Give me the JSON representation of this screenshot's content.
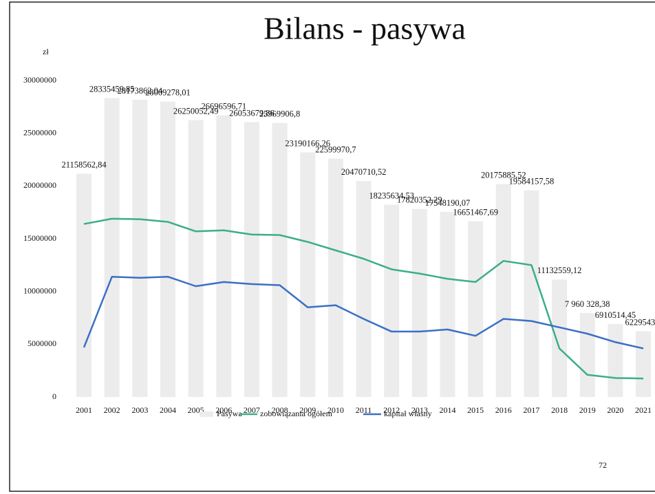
{
  "chart_data": {
    "type": "bar_line",
    "title": "Bilans - pasywa",
    "y_unit": "zł",
    "page_number": "72",
    "categories": [
      "2001",
      "2002",
      "2003",
      "2004",
      "2005",
      "2006",
      "2007",
      "2008",
      "2009",
      "2010",
      "2011",
      "2012",
      "2013",
      "2014",
      "2015",
      "2016",
      "2017",
      "2018",
      "2019",
      "2020",
      "2021"
    ],
    "series": [
      {
        "name": "Pasywa",
        "kind": "bar",
        "color": "#ececec",
        "values": [
          21158562.84,
          28335459.85,
          28173862.04,
          28009278.01,
          26250052.49,
          26696596.71,
          26053679.86,
          25969906.8,
          23190166.26,
          22599970.7,
          20470710.52,
          18235634.53,
          17820352.29,
          17548190.07,
          16651467.69,
          20175885.52,
          19584157.58,
          11132559.12,
          7960328.38,
          6910514.45,
          6229543.6
        ],
        "value_labels": [
          "21158562,84",
          "28335459,85",
          "28173862,04",
          "28009278,01",
          "26250052,49",
          "26696596,71",
          "26053679,86",
          "25969906,8",
          "23190166,26",
          "22599970,7",
          "20470710,52",
          "18235634,53",
          "17820352,29",
          "17548190,07",
          "16651467,69",
          "20175885,52",
          "19584157,58",
          "11132559,12",
          "7 960 328,38",
          "6910514,45",
          "6229543,6"
        ]
      },
      {
        "name": "zobowiązania ogółem",
        "kind": "line",
        "color": "#3bae88",
        "values": [
          16400000,
          16900000,
          16850000,
          16600000,
          15700000,
          15800000,
          15400000,
          15350000,
          14700000,
          13900000,
          13100000,
          12100000,
          11700000,
          11200000,
          10900000,
          12900000,
          12500000,
          4600000,
          2100000,
          1800000,
          1750000
        ]
      },
      {
        "name": "kapitał własny",
        "kind": "line",
        "color": "#3a6fc4",
        "values": [
          4700000,
          11400000,
          11300000,
          11400000,
          10500000,
          10900000,
          10700000,
          10600000,
          8500000,
          8700000,
          7400000,
          6200000,
          6200000,
          6400000,
          5800000,
          7400000,
          7200000,
          6600000,
          6000000,
          5200000,
          4600000
        ]
      }
    ],
    "ylim": [
      0,
      30000000
    ],
    "yticks": [
      0,
      5000000,
      10000000,
      15000000,
      20000000,
      25000000,
      30000000
    ],
    "legend": "bottom"
  }
}
